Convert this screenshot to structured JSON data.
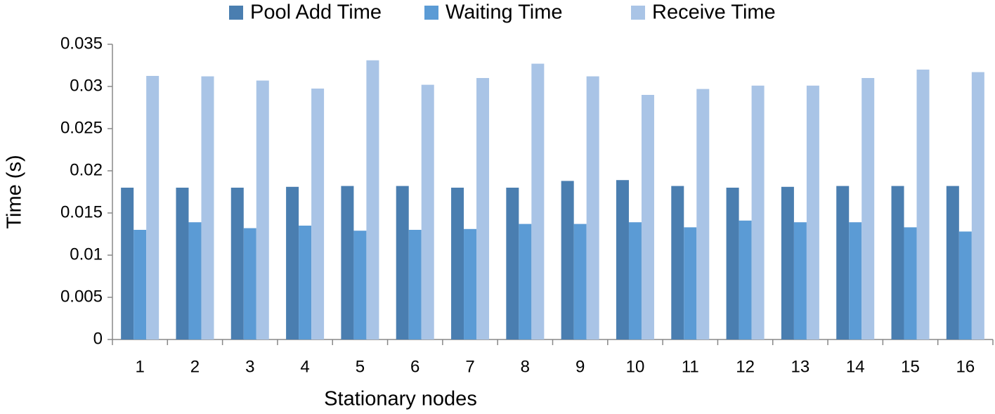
{
  "chart_data": {
    "type": "bar",
    "x_label": "Stationary nodes",
    "y_label": "Time (s)",
    "categories": [
      "1",
      "2",
      "3",
      "4",
      "5",
      "6",
      "7",
      "8",
      "9",
      "10",
      "11",
      "12",
      "13",
      "14",
      "15",
      "16"
    ],
    "series": [
      {
        "name": "Pool Add Time",
        "color": "#4a7eb0",
        "values": [
          0.018,
          0.018,
          0.018,
          0.0181,
          0.0182,
          0.0182,
          0.018,
          0.018,
          0.0188,
          0.0189,
          0.0182,
          0.018,
          0.0181,
          0.0182,
          0.0182,
          0.0182
        ]
      },
      {
        "name": "Waiting Time",
        "color": "#5b9bd5",
        "values": [
          0.013,
          0.0139,
          0.0132,
          0.0135,
          0.0129,
          0.013,
          0.0131,
          0.0137,
          0.0137,
          0.0139,
          0.0133,
          0.0141,
          0.0139,
          0.0139,
          0.0133,
          0.0128
        ]
      },
      {
        "name": "Receive Time",
        "color": "#a9c4e6",
        "values": [
          0.03125,
          0.0312,
          0.0307,
          0.02975,
          0.0331,
          0.0302,
          0.031,
          0.0327,
          0.0312,
          0.029,
          0.0297,
          0.0301,
          0.0301,
          0.031,
          0.032,
          0.0317
        ]
      }
    ],
    "ylim": [
      0,
      0.035
    ],
    "yticks": [
      0,
      0.005,
      0.01,
      0.015,
      0.02,
      0.025,
      0.03,
      0.035
    ],
    "grid": false,
    "legend": "top"
  }
}
